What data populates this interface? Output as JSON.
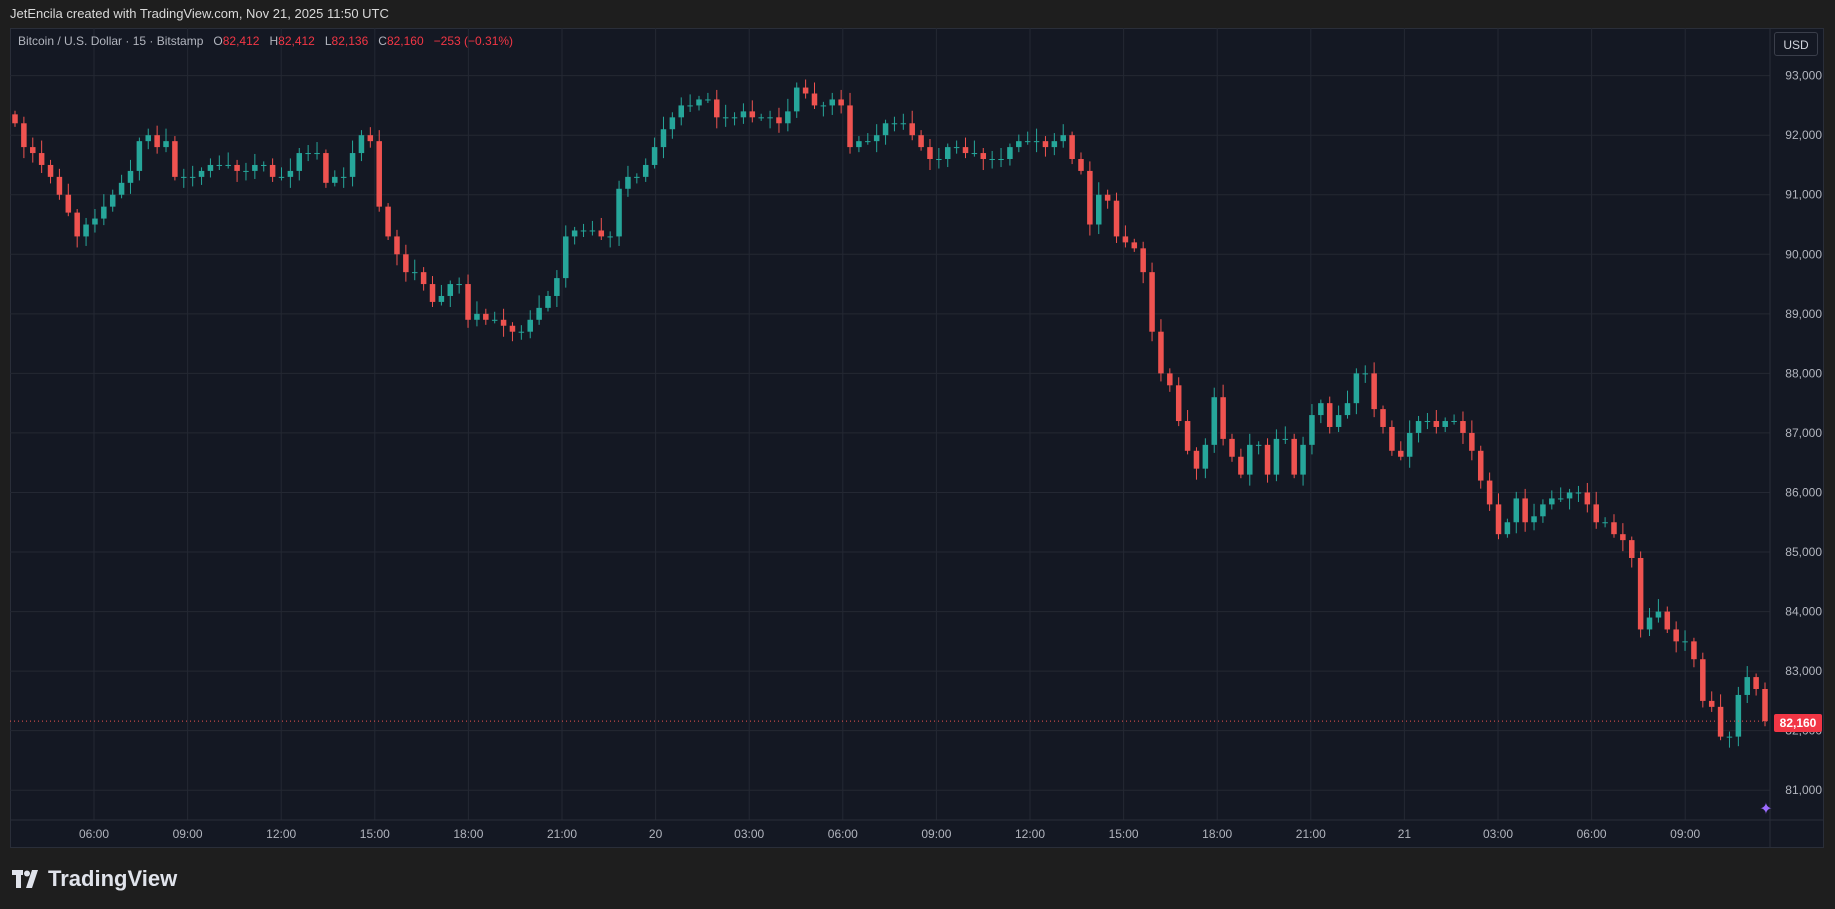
{
  "header": {
    "credit": "JetEncila created with TradingView.com, Nov 21, 2025 11:50 UTC"
  },
  "legend": {
    "symbol": "Bitcoin / U.S. Dollar · 15 · Bitstamp",
    "open_label": "O",
    "open": "82,412",
    "high_label": "H",
    "high": "82,412",
    "low_label": "L",
    "low": "82,136",
    "close_label": "C",
    "close": "82,160",
    "change": "−253 (−0.31%)"
  },
  "currency_button": "USD",
  "last_price_label": "82,160",
  "brand": "TradingView",
  "colors": {
    "up": "#26a69a",
    "down": "#ef5350",
    "background": "#141823",
    "grid": "#242833"
  },
  "chart_data": {
    "type": "candlestick",
    "title": "",
    "ylim": [
      80500,
      93800
    ],
    "y_ticks": [
      "81,000",
      "82,000",
      "83,000",
      "84,000",
      "85,000",
      "86,000",
      "87,000",
      "88,000",
      "89,000",
      "90,000",
      "91,000",
      "92,000",
      "93,000"
    ],
    "x_ticks": [
      "06:00",
      "09:00",
      "12:00",
      "15:00",
      "18:00",
      "21:00",
      "20",
      "03:00",
      "06:00",
      "09:00",
      "12:00",
      "15:00",
      "18:00",
      "21:00",
      "21",
      "03:00",
      "06:00",
      "09:00"
    ],
    "last_price": 82160,
    "close_path": [
      92200,
      91800,
      91700,
      91500,
      91300,
      91000,
      90700,
      90300,
      90500,
      90600,
      90800,
      91000,
      91200,
      91400,
      91900,
      92000,
      91800,
      91900,
      91300,
      91300,
      91300,
      91400,
      91500,
      91500,
      91500,
      91400,
      91400,
      91500,
      91500,
      91300,
      91300,
      91400,
      91700,
      91700,
      91700,
      91200,
      91300,
      91300,
      91700,
      92000,
      91900,
      90800,
      90300,
      90000,
      89700,
      89700,
      89500,
      89200,
      89300,
      89500,
      89500,
      88900,
      89000,
      88900,
      88900,
      88800,
      88700,
      88700,
      88900,
      89100,
      89300,
      89600,
      90300,
      90400,
      90400,
      90400,
      90300,
      90300,
      91100,
      91300,
      91300,
      91500,
      91800,
      92100,
      92300,
      92500,
      92500,
      92600,
      92600,
      92300,
      92300,
      92300,
      92400,
      92300,
      92300,
      92300,
      92200,
      92400,
      92800,
      92700,
      92500,
      92500,
      92600,
      92500,
      91800,
      91900,
      91900,
      92000,
      92200,
      92200,
      92200,
      92000,
      91800,
      91600,
      91600,
      91800,
      91800,
      91700,
      91700,
      91600,
      91600,
      91600,
      91800,
      91900,
      91900,
      91900,
      91800,
      91900,
      92000,
      91600,
      91400,
      90500,
      91000,
      90900,
      90300,
      90200,
      90100,
      89700,
      88700,
      88000,
      87800,
      87200,
      86700,
      86400,
      86800,
      87600,
      86900,
      86600,
      86300,
      86800,
      86800,
      86300,
      86900,
      86900,
      86300,
      86800,
      87300,
      87500,
      87100,
      87300,
      87500,
      88000,
      88000,
      87400,
      87100,
      86700,
      86600,
      87000,
      87200,
      87200,
      87100,
      87200,
      87200,
      87000,
      86700,
      86200,
      85800,
      85300,
      85500,
      85900,
      85500,
      85600,
      85800,
      85900,
      85900,
      86000,
      86000,
      85800,
      85500,
      85500,
      85300,
      85200,
      84900,
      83700,
      83900,
      84000,
      83700,
      83500,
      83500,
      83200,
      82500,
      82400,
      81900,
      81900,
      82600,
      82900,
      82700,
      82160
    ],
    "price_scale_currency": "USD"
  }
}
